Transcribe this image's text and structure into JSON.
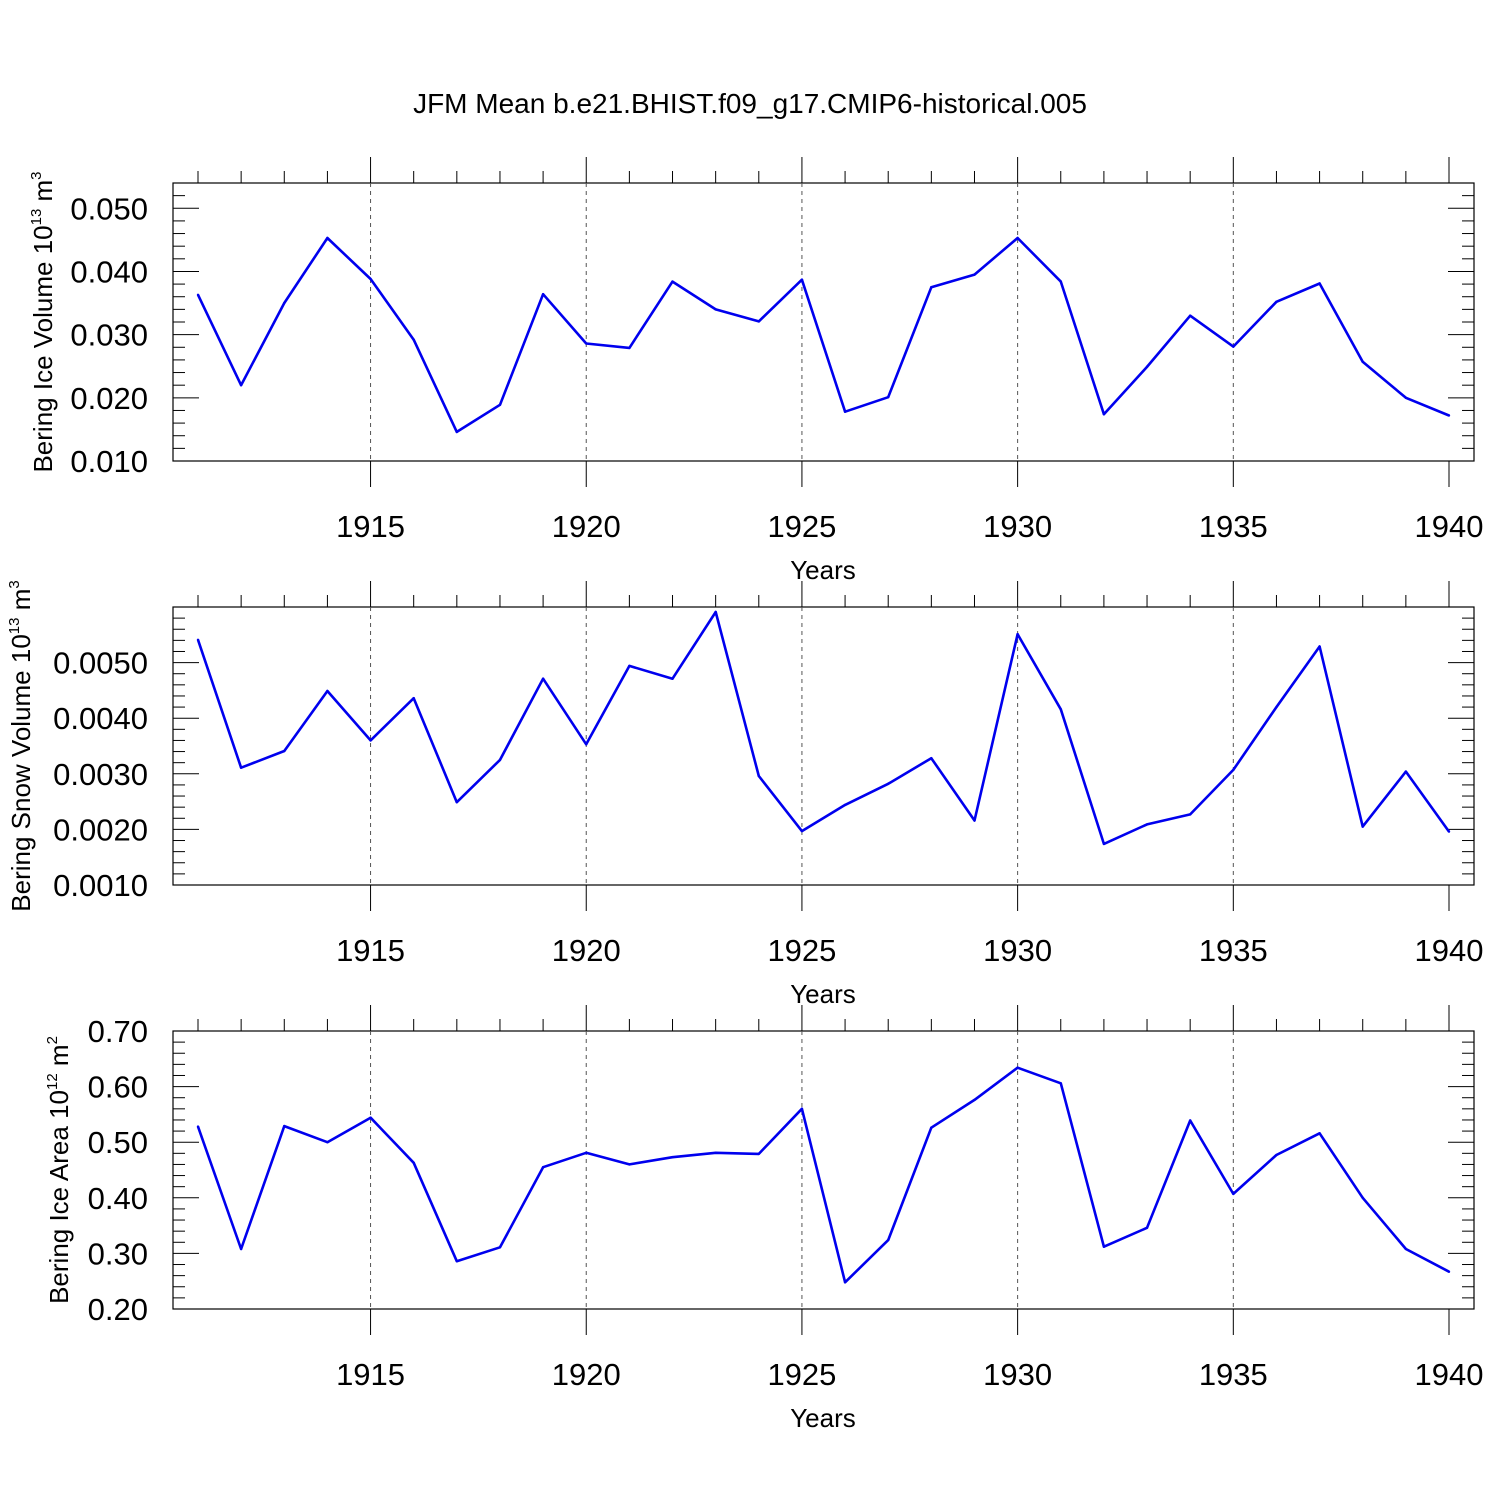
{
  "title": "JFM Mean b.e21.BHIST.f09_g17.CMIP6-historical.005",
  "line_color": "#0000ee",
  "chart_data": [
    {
      "type": "line",
      "xlabel": "Years",
      "ylabel_main": "Bering Ice Volume 10",
      "ylabel_exp": "13",
      "ylabel_unit": "m",
      "ylabel_unit_exp": "3",
      "ylim": [
        0.01,
        0.054
      ],
      "yticks": [
        0.01,
        0.02,
        0.03,
        0.04,
        0.05
      ],
      "ytick_labels": [
        "0.010",
        "0.020",
        "0.030",
        "0.040",
        "0.050"
      ],
      "xlim": [
        1911,
        1940
      ],
      "xticks": [
        1915,
        1920,
        1925,
        1930,
        1935,
        1940
      ],
      "xtick_labels": [
        "1915",
        "1920",
        "1925",
        "1930",
        "1935",
        "1940"
      ],
      "grid": "dashed vertical at major x ticks",
      "x": [
        1911,
        1912,
        1913,
        1914,
        1915,
        1916,
        1917,
        1918,
        1919,
        1920,
        1921,
        1922,
        1923,
        1924,
        1925,
        1926,
        1927,
        1928,
        1929,
        1930,
        1931,
        1932,
        1933,
        1934,
        1935,
        1936,
        1937,
        1938,
        1939,
        1940
      ],
      "values": [
        0.0363,
        0.022,
        0.035,
        0.0453,
        0.0388,
        0.0292,
        0.0146,
        0.0189,
        0.0364,
        0.0286,
        0.0279,
        0.0384,
        0.034,
        0.0321,
        0.0387,
        0.0178,
        0.0201,
        0.0375,
        0.0395,
        0.0453,
        0.0384,
        0.0174,
        0.0249,
        0.033,
        0.0281,
        0.0352,
        0.0381,
        0.0257,
        0.02,
        0.0172
      ]
    },
    {
      "type": "line",
      "xlabel": "Years",
      "ylabel_main": "Bering Snow Volume 10",
      "ylabel_exp": "13",
      "ylabel_unit": "m",
      "ylabel_unit_exp": "3",
      "ylim": [
        0.001,
        0.006
      ],
      "yticks": [
        0.001,
        0.002,
        0.003,
        0.004,
        0.005
      ],
      "ytick_labels": [
        "0.0010",
        "0.0020",
        "0.0030",
        "0.0040",
        "0.0050"
      ],
      "xlim": [
        1911,
        1940
      ],
      "xticks": [
        1915,
        1920,
        1925,
        1930,
        1935,
        1940
      ],
      "xtick_labels": [
        "1915",
        "1920",
        "1925",
        "1930",
        "1935",
        "1940"
      ],
      "grid": "dashed vertical at major x ticks",
      "x": [
        1911,
        1912,
        1913,
        1914,
        1915,
        1916,
        1917,
        1918,
        1919,
        1920,
        1921,
        1922,
        1923,
        1924,
        1925,
        1926,
        1927,
        1928,
        1929,
        1930,
        1931,
        1932,
        1933,
        1934,
        1935,
        1936,
        1937,
        1938,
        1939,
        1940
      ],
      "values": [
        0.00541,
        0.00311,
        0.00341,
        0.00449,
        0.0036,
        0.00436,
        0.00249,
        0.00325,
        0.00471,
        0.00353,
        0.00494,
        0.00471,
        0.00591,
        0.00296,
        0.00197,
        0.00244,
        0.00282,
        0.00328,
        0.00216,
        0.00551,
        0.00416,
        0.00174,
        0.00209,
        0.00227,
        0.00307,
        0.0042,
        0.00529,
        0.00205,
        0.00304,
        0.00196
      ]
    },
    {
      "type": "line",
      "xlabel": "Years",
      "ylabel_main": "Bering Ice Area 10",
      "ylabel_exp": "12",
      "ylabel_unit": "m",
      "ylabel_unit_exp": "2",
      "ylim": [
        0.2,
        0.7
      ],
      "yticks": [
        0.2,
        0.3,
        0.4,
        0.5,
        0.6,
        0.7
      ],
      "ytick_labels": [
        "0.20",
        "0.30",
        "0.40",
        "0.50",
        "0.60",
        "0.70"
      ],
      "xlim": [
        1911,
        1940
      ],
      "xticks": [
        1915,
        1920,
        1925,
        1930,
        1935,
        1940
      ],
      "xtick_labels": [
        "1915",
        "1920",
        "1925",
        "1930",
        "1935",
        "1940"
      ],
      "grid": "dashed vertical at major x ticks",
      "x": [
        1911,
        1912,
        1913,
        1914,
        1915,
        1916,
        1917,
        1918,
        1919,
        1920,
        1921,
        1922,
        1923,
        1924,
        1925,
        1926,
        1927,
        1928,
        1929,
        1930,
        1931,
        1932,
        1933,
        1934,
        1935,
        1936,
        1937,
        1938,
        1939,
        1940
      ],
      "values": [
        0.528,
        0.308,
        0.529,
        0.5,
        0.544,
        0.463,
        0.286,
        0.311,
        0.455,
        0.481,
        0.46,
        0.473,
        0.481,
        0.479,
        0.56,
        0.248,
        0.324,
        0.526,
        0.576,
        0.634,
        0.606,
        0.312,
        0.346,
        0.539,
        0.407,
        0.477,
        0.516,
        0.4,
        0.308,
        0.267
      ]
    }
  ]
}
